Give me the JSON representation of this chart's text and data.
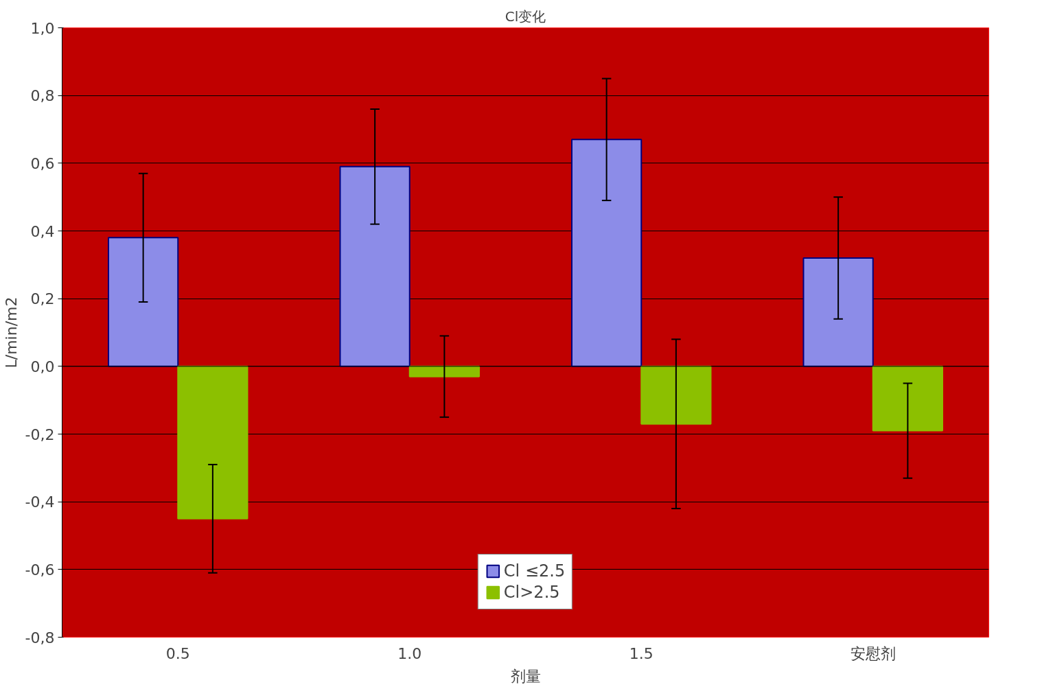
{
  "chart_data": {
    "type": "bar",
    "title": "Cl变化",
    "xlabel": "剂量",
    "ylabel": "L/min/m2",
    "categories": [
      "0.5",
      "1.0",
      "1.5",
      "安慰剂"
    ],
    "series": [
      {
        "name": "Cl ≤2.5",
        "color": "#8c8ce8",
        "values": [
          0.38,
          0.59,
          0.67,
          0.32
        ],
        "errors": [
          0.19,
          0.17,
          0.18,
          0.18
        ]
      },
      {
        "name": "Cl>2.5",
        "color": "#8cc000",
        "values": [
          -0.45,
          -0.03,
          -0.17,
          -0.19
        ],
        "errors": [
          0.16,
          0.12,
          0.25,
          0.14
        ]
      }
    ],
    "ylim": [
      -0.8,
      1.0
    ],
    "yticks": [
      {
        "value": -0.8,
        "label": "-0,8"
      },
      {
        "value": -0.6,
        "label": "-0,6"
      },
      {
        "value": -0.4,
        "label": "-0,4"
      },
      {
        "value": -0.2,
        "label": "-0,2"
      },
      {
        "value": 0,
        "label": "0,0"
      },
      {
        "value": 0.2,
        "label": "0,2"
      },
      {
        "value": 0.4,
        "label": "0,4"
      },
      {
        "value": 0.6,
        "label": "0,6"
      },
      {
        "value": 0.8,
        "label": "0,8"
      },
      {
        "value": 1.0,
        "label": "1,0"
      }
    ],
    "grid": "y",
    "legend": "bottom"
  }
}
